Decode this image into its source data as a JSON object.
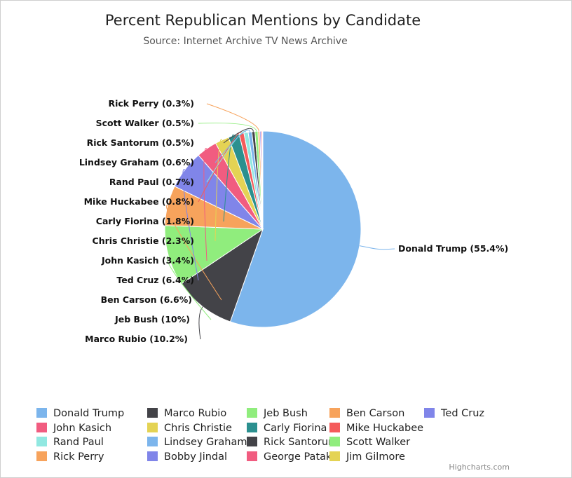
{
  "chart_data": {
    "type": "pie",
    "title": "Percent Republican Mentions by Candidate",
    "subtitle": "Source: Internet Archive TV News Archive",
    "data_labels": [
      "Donald Trump (55.4%)",
      "Marco Rubio (10.2%)",
      "Jeb Bush (10%)",
      "Ben Carson (6.6%)",
      "Ted Cruz (6.4%)",
      "John Kasich (3.4%)",
      "Chris Christie (2.3%)",
      "Carly Fiorina (1.8%)",
      "Mike Huckabee (0.8%)",
      "Rand Paul (0.7%)",
      "Lindsey Graham (0.6%)",
      "Rick Santorum (0.5%)",
      "Scott Walker (0.5%)",
      "Rick Perry (0.3%)"
    ],
    "slices": [
      {
        "name": "Donald Trump",
        "value": 55.4,
        "color": "#7cb5ec"
      },
      {
        "name": "Marco Rubio",
        "value": 10.2,
        "color": "#434348"
      },
      {
        "name": "Jeb Bush",
        "value": 10.0,
        "color": "#90ed7d"
      },
      {
        "name": "Ben Carson",
        "value": 6.6,
        "color": "#f7a35c"
      },
      {
        "name": "Ted Cruz",
        "value": 6.4,
        "color": "#8085e9"
      },
      {
        "name": "John Kasich",
        "value": 3.4,
        "color": "#f15c80"
      },
      {
        "name": "Chris Christie",
        "value": 2.3,
        "color": "#e4d354"
      },
      {
        "name": "Carly Fiorina",
        "value": 1.8,
        "color": "#2b908f"
      },
      {
        "name": "Mike Huckabee",
        "value": 0.8,
        "color": "#f45b5b"
      },
      {
        "name": "Rand Paul",
        "value": 0.7,
        "color": "#91e8e1"
      },
      {
        "name": "Lindsey Graham",
        "value": 0.6,
        "color": "#7cb5ec"
      },
      {
        "name": "Rick Santorum",
        "value": 0.5,
        "color": "#434348"
      },
      {
        "name": "Scott Walker",
        "value": 0.5,
        "color": "#90ed7d"
      },
      {
        "name": "Rick Perry",
        "value": 0.3,
        "color": "#f7a35c"
      },
      {
        "name": "Bobby Jindal",
        "value": 0.2,
        "color": "#8085e9"
      },
      {
        "name": "George Pataki",
        "value": 0.2,
        "color": "#f15c80"
      },
      {
        "name": "Jim Gilmore",
        "value": 0.1,
        "color": "#e4d354"
      }
    ],
    "legend_position": "bottom"
  },
  "credits": "Highcharts.com"
}
